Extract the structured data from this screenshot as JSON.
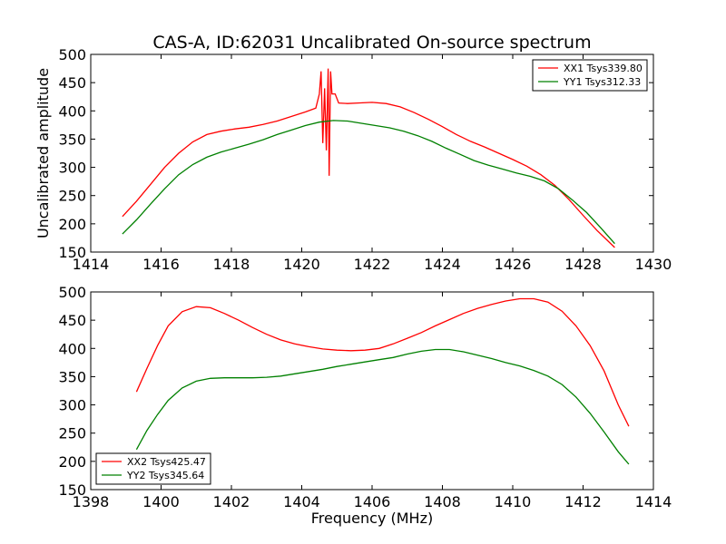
{
  "title": "CAS-A, ID:62031 Uncalibrated On-source spectrum",
  "chart_data": [
    {
      "type": "line",
      "xlabel": "",
      "ylabel": "Uncalibrated amplitude",
      "xlim": [
        1414,
        1430
      ],
      "ylim": [
        150,
        500
      ],
      "xticks": [
        1414,
        1416,
        1418,
        1420,
        1422,
        1424,
        1426,
        1428,
        1430
      ],
      "yticks": [
        150,
        200,
        250,
        300,
        350,
        400,
        450,
        500
      ],
      "legend_position": "top-right",
      "series": [
        {
          "name": "XX1 Tsys339.80",
          "color": "#ff0000",
          "points": [
            [
              1414.9,
              213
            ],
            [
              1415.3,
              240
            ],
            [
              1415.7,
              270
            ],
            [
              1416.1,
              300
            ],
            [
              1416.5,
              325
            ],
            [
              1416.9,
              345
            ],
            [
              1417.3,
              358
            ],
            [
              1417.7,
              364
            ],
            [
              1418.1,
              368
            ],
            [
              1418.5,
              371
            ],
            [
              1418.9,
              376
            ],
            [
              1419.3,
              382
            ],
            [
              1419.7,
              390
            ],
            [
              1420.1,
              398
            ],
            [
              1420.4,
              405
            ],
            [
              1420.5,
              430
            ],
            [
              1420.55,
              470
            ],
            [
              1420.6,
              343
            ],
            [
              1420.65,
              440
            ],
            [
              1420.7,
              330
            ],
            [
              1420.75,
              475
            ],
            [
              1420.78,
              285
            ],
            [
              1420.82,
              470
            ],
            [
              1420.86,
              430
            ],
            [
              1420.95,
              430
            ],
            [
              1421.05,
              414
            ],
            [
              1421.3,
              413
            ],
            [
              1421.6,
              414
            ],
            [
              1422.0,
              415
            ],
            [
              1422.4,
              413
            ],
            [
              1422.8,
              407
            ],
            [
              1423.2,
              397
            ],
            [
              1423.6,
              385
            ],
            [
              1424.0,
              372
            ],
            [
              1424.4,
              358
            ],
            [
              1424.8,
              346
            ],
            [
              1425.2,
              336
            ],
            [
              1425.6,
              325
            ],
            [
              1426.0,
              314
            ],
            [
              1426.4,
              302
            ],
            [
              1426.8,
              287
            ],
            [
              1427.2,
              268
            ],
            [
              1427.6,
              243
            ],
            [
              1428.0,
              215
            ],
            [
              1428.4,
              188
            ],
            [
              1428.9,
              158
            ]
          ]
        },
        {
          "name": "YY1 Tsys312.33",
          "color": "#008000",
          "points": [
            [
              1414.9,
              182
            ],
            [
              1415.3,
              207
            ],
            [
              1415.7,
              235
            ],
            [
              1416.1,
              262
            ],
            [
              1416.5,
              287
            ],
            [
              1416.9,
              305
            ],
            [
              1417.3,
              318
            ],
            [
              1417.7,
              327
            ],
            [
              1418.1,
              334
            ],
            [
              1418.5,
              341
            ],
            [
              1418.9,
              349
            ],
            [
              1419.3,
              358
            ],
            [
              1419.7,
              366
            ],
            [
              1420.1,
              374
            ],
            [
              1420.5,
              380
            ],
            [
              1420.9,
              383
            ],
            [
              1421.3,
              382
            ],
            [
              1421.7,
              378
            ],
            [
              1422.1,
              374
            ],
            [
              1422.5,
              370
            ],
            [
              1422.9,
              364
            ],
            [
              1423.3,
              356
            ],
            [
              1423.7,
              346
            ],
            [
              1424.1,
              334
            ],
            [
              1424.5,
              323
            ],
            [
              1424.9,
              312
            ],
            [
              1425.3,
              304
            ],
            [
              1425.7,
              297
            ],
            [
              1426.1,
              290
            ],
            [
              1426.5,
              284
            ],
            [
              1426.9,
              276
            ],
            [
              1427.3,
              262
            ],
            [
              1427.7,
              242
            ],
            [
              1428.1,
              220
            ],
            [
              1428.5,
              193
            ],
            [
              1428.9,
              165
            ]
          ]
        }
      ]
    },
    {
      "type": "line",
      "xlabel": "Frequency (MHz)",
      "ylabel": "",
      "xlim": [
        1398,
        1414
      ],
      "ylim": [
        150,
        500
      ],
      "xticks": [
        1398,
        1400,
        1402,
        1404,
        1406,
        1408,
        1410,
        1412,
        1414
      ],
      "yticks": [
        150,
        200,
        250,
        300,
        350,
        400,
        450,
        500
      ],
      "legend_position": "bottom-left",
      "series": [
        {
          "name": "XX2 Tsys425.47",
          "color": "#ff0000",
          "points": [
            [
              1399.3,
              323
            ],
            [
              1399.6,
              365
            ],
            [
              1399.9,
              405
            ],
            [
              1400.2,
              440
            ],
            [
              1400.6,
              465
            ],
            [
              1401.0,
              474
            ],
            [
              1401.4,
              472
            ],
            [
              1401.8,
              462
            ],
            [
              1402.2,
              450
            ],
            [
              1402.6,
              437
            ],
            [
              1403.0,
              425
            ],
            [
              1403.4,
              415
            ],
            [
              1403.8,
              408
            ],
            [
              1404.2,
              403
            ],
            [
              1404.6,
              399
            ],
            [
              1405.0,
              397
            ],
            [
              1405.4,
              396
            ],
            [
              1405.8,
              397
            ],
            [
              1406.2,
              400
            ],
            [
              1406.6,
              408
            ],
            [
              1407.0,
              418
            ],
            [
              1407.4,
              428
            ],
            [
              1407.8,
              440
            ],
            [
              1408.2,
              451
            ],
            [
              1408.6,
              462
            ],
            [
              1409.0,
              471
            ],
            [
              1409.4,
              478
            ],
            [
              1409.8,
              484
            ],
            [
              1410.2,
              488
            ],
            [
              1410.6,
              488
            ],
            [
              1411.0,
              482
            ],
            [
              1411.4,
              466
            ],
            [
              1411.8,
              440
            ],
            [
              1412.2,
              405
            ],
            [
              1412.6,
              360
            ],
            [
              1413.0,
              300
            ],
            [
              1413.3,
              262
            ]
          ]
        },
        {
          "name": "YY2 Tsys345.64",
          "color": "#008000",
          "points": [
            [
              1399.3,
              221
            ],
            [
              1399.6,
              255
            ],
            [
              1399.9,
              283
            ],
            [
              1400.2,
              308
            ],
            [
              1400.6,
              330
            ],
            [
              1401.0,
              342
            ],
            [
              1401.4,
              347
            ],
            [
              1401.8,
              348
            ],
            [
              1402.2,
              348
            ],
            [
              1402.6,
              348
            ],
            [
              1403.0,
              349
            ],
            [
              1403.4,
              351
            ],
            [
              1403.8,
              355
            ],
            [
              1404.2,
              359
            ],
            [
              1404.6,
              363
            ],
            [
              1405.0,
              368
            ],
            [
              1405.4,
              372
            ],
            [
              1405.8,
              376
            ],
            [
              1406.2,
              380
            ],
            [
              1406.6,
              384
            ],
            [
              1407.0,
              390
            ],
            [
              1407.4,
              395
            ],
            [
              1407.8,
              398
            ],
            [
              1408.2,
              398
            ],
            [
              1408.6,
              394
            ],
            [
              1409.0,
              388
            ],
            [
              1409.4,
              382
            ],
            [
              1409.8,
              375
            ],
            [
              1410.2,
              369
            ],
            [
              1410.6,
              361
            ],
            [
              1411.0,
              351
            ],
            [
              1411.4,
              336
            ],
            [
              1411.8,
              314
            ],
            [
              1412.2,
              285
            ],
            [
              1412.6,
              252
            ],
            [
              1413.0,
              217
            ],
            [
              1413.3,
              195
            ]
          ]
        }
      ]
    }
  ]
}
